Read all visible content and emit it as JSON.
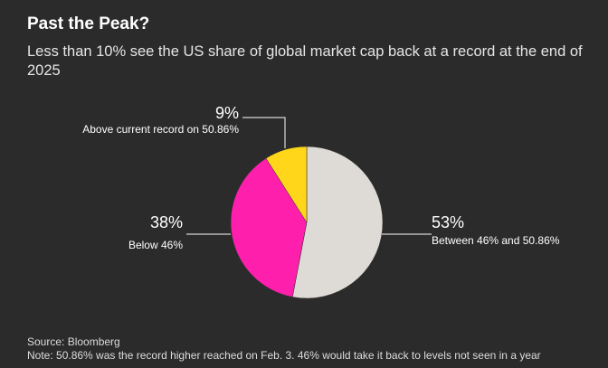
{
  "title": "Past the Peak?",
  "subtitle": "Less than 10% see the US share of global market cap back at a record at the end of 2025",
  "chart_data": {
    "type": "pie",
    "slices": [
      {
        "label": "Between 46% and 50.86%",
        "value": 53,
        "value_label": "53%",
        "color": "#dedbd7"
      },
      {
        "label": "Below 46%",
        "value": 38,
        "value_label": "38%",
        "color": "#fe1fac"
      },
      {
        "label": "Above current record on 50.86%",
        "value": 9,
        "value_label": "9%",
        "color": "#ffd619"
      }
    ],
    "legend": "none"
  },
  "source": "Source: Bloomberg",
  "note": "Note: 50.86% was the record higher reached on Feb. 3. 46% would take it back to levels not seen in a year"
}
